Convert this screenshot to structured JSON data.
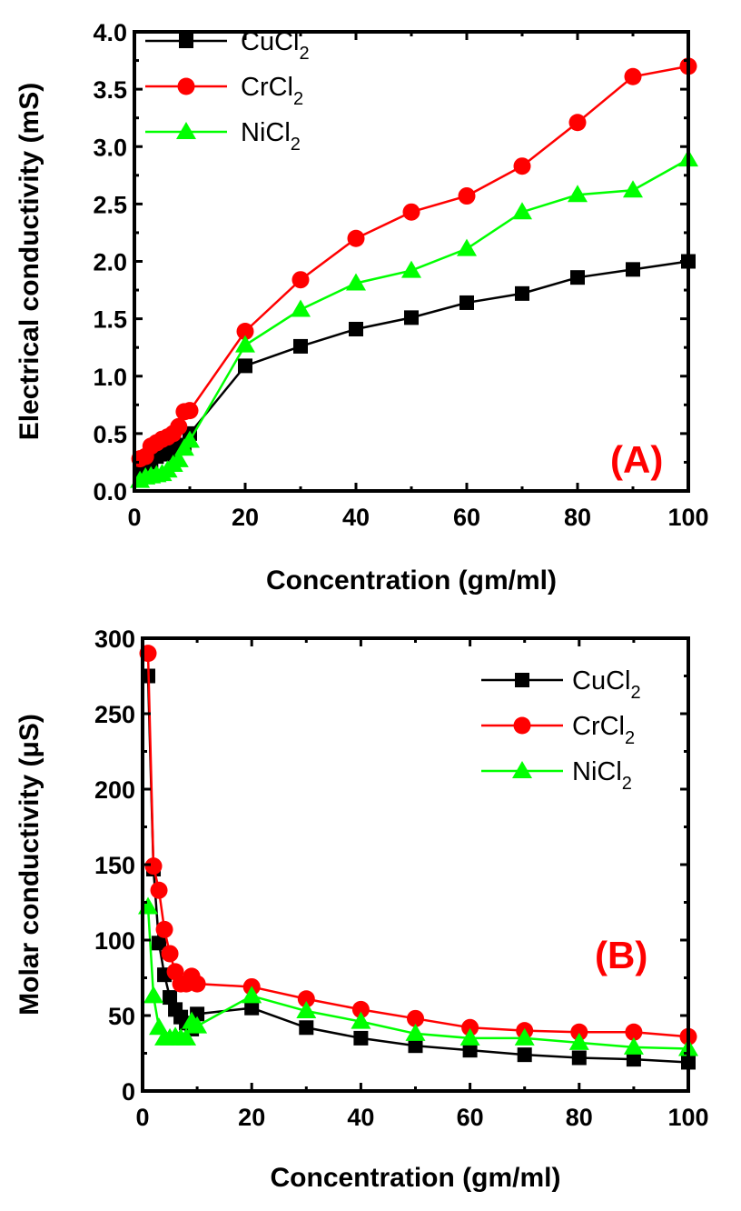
{
  "chart_data": [
    {
      "type": "line",
      "panel_label": "(A)",
      "xlabel": "Concentration (gm/ml)",
      "ylabel": "Electrical conductivity (mS)",
      "xlim": [
        0,
        100
      ],
      "ylim": [
        0,
        4.0
      ],
      "xticks": [
        "0",
        "20",
        "40",
        "60",
        "80",
        "100"
      ],
      "yticks": [
        "0.0",
        "0.5",
        "1.0",
        "1.5",
        "2.0",
        "2.5",
        "3.0",
        "3.5",
        "4.0"
      ],
      "legend_position": "top-left",
      "x": [
        1,
        2,
        3,
        4,
        5,
        6,
        7,
        8,
        9,
        10,
        20,
        30,
        40,
        50,
        60,
        70,
        80,
        90,
        100
      ],
      "series": [
        {
          "name": "CuCl",
          "sub": "2",
          "color": "#000000",
          "marker": "square",
          "values": [
            0.15,
            0.2,
            0.25,
            0.3,
            0.32,
            0.33,
            0.35,
            0.38,
            0.4,
            0.5,
            1.09,
            1.26,
            1.41,
            1.51,
            1.64,
            1.72,
            1.86,
            1.93,
            2.0
          ]
        },
        {
          "name": "CrCl",
          "sub": "2",
          "color": "#ff0000",
          "marker": "circle",
          "values": [
            0.28,
            0.3,
            0.39,
            0.42,
            0.45,
            0.47,
            0.5,
            0.56,
            0.69,
            0.7,
            1.39,
            1.84,
            2.2,
            2.43,
            2.57,
            2.83,
            3.21,
            3.61,
            3.7
          ]
        },
        {
          "name": "NiCl",
          "sub": "2",
          "color": "#00ff00",
          "marker": "triangle",
          "values": [
            0.09,
            0.12,
            0.13,
            0.14,
            0.15,
            0.18,
            0.23,
            0.27,
            0.37,
            0.44,
            1.27,
            1.58,
            1.81,
            1.92,
            2.11,
            2.43,
            2.58,
            2.62,
            2.89
          ]
        }
      ]
    },
    {
      "type": "line",
      "panel_label": "(B)",
      "xlabel": "Concentration (gm/ml)",
      "ylabel": "Molar conductivity (μS)",
      "xlim": [
        0,
        100
      ],
      "ylim": [
        0,
        300
      ],
      "xticks": [
        "0",
        "20",
        "40",
        "60",
        "80",
        "100"
      ],
      "yticks": [
        "0",
        "50",
        "100",
        "150",
        "200",
        "250",
        "300"
      ],
      "legend_position": "top-right",
      "x": [
        1,
        2,
        3,
        4,
        5,
        6,
        7,
        8,
        9,
        10,
        20,
        30,
        40,
        50,
        60,
        70,
        80,
        90,
        100
      ],
      "series": [
        {
          "name": "CuCl",
          "sub": "2",
          "color": "#000000",
          "marker": "square",
          "values": [
            275,
            147,
            98,
            77,
            62,
            54,
            49,
            45,
            41,
            51,
            55,
            42,
            35,
            30,
            27,
            24,
            22,
            21,
            19
          ]
        },
        {
          "name": "CrCl",
          "sub": "2",
          "color": "#ff0000",
          "marker": "circle",
          "values": [
            290,
            149,
            133,
            107,
            91,
            79,
            71,
            71,
            76,
            71,
            69,
            61,
            54,
            48,
            42,
            40,
            39,
            39,
            36
          ]
        },
        {
          "name": "NiCl",
          "sub": "2",
          "color": "#00ff00",
          "marker": "triangle",
          "values": [
            122,
            63,
            42,
            35,
            35,
            36,
            35,
            35,
            46,
            43,
            63,
            53,
            46,
            38,
            35,
            35,
            32,
            29,
            28
          ]
        }
      ]
    }
  ]
}
